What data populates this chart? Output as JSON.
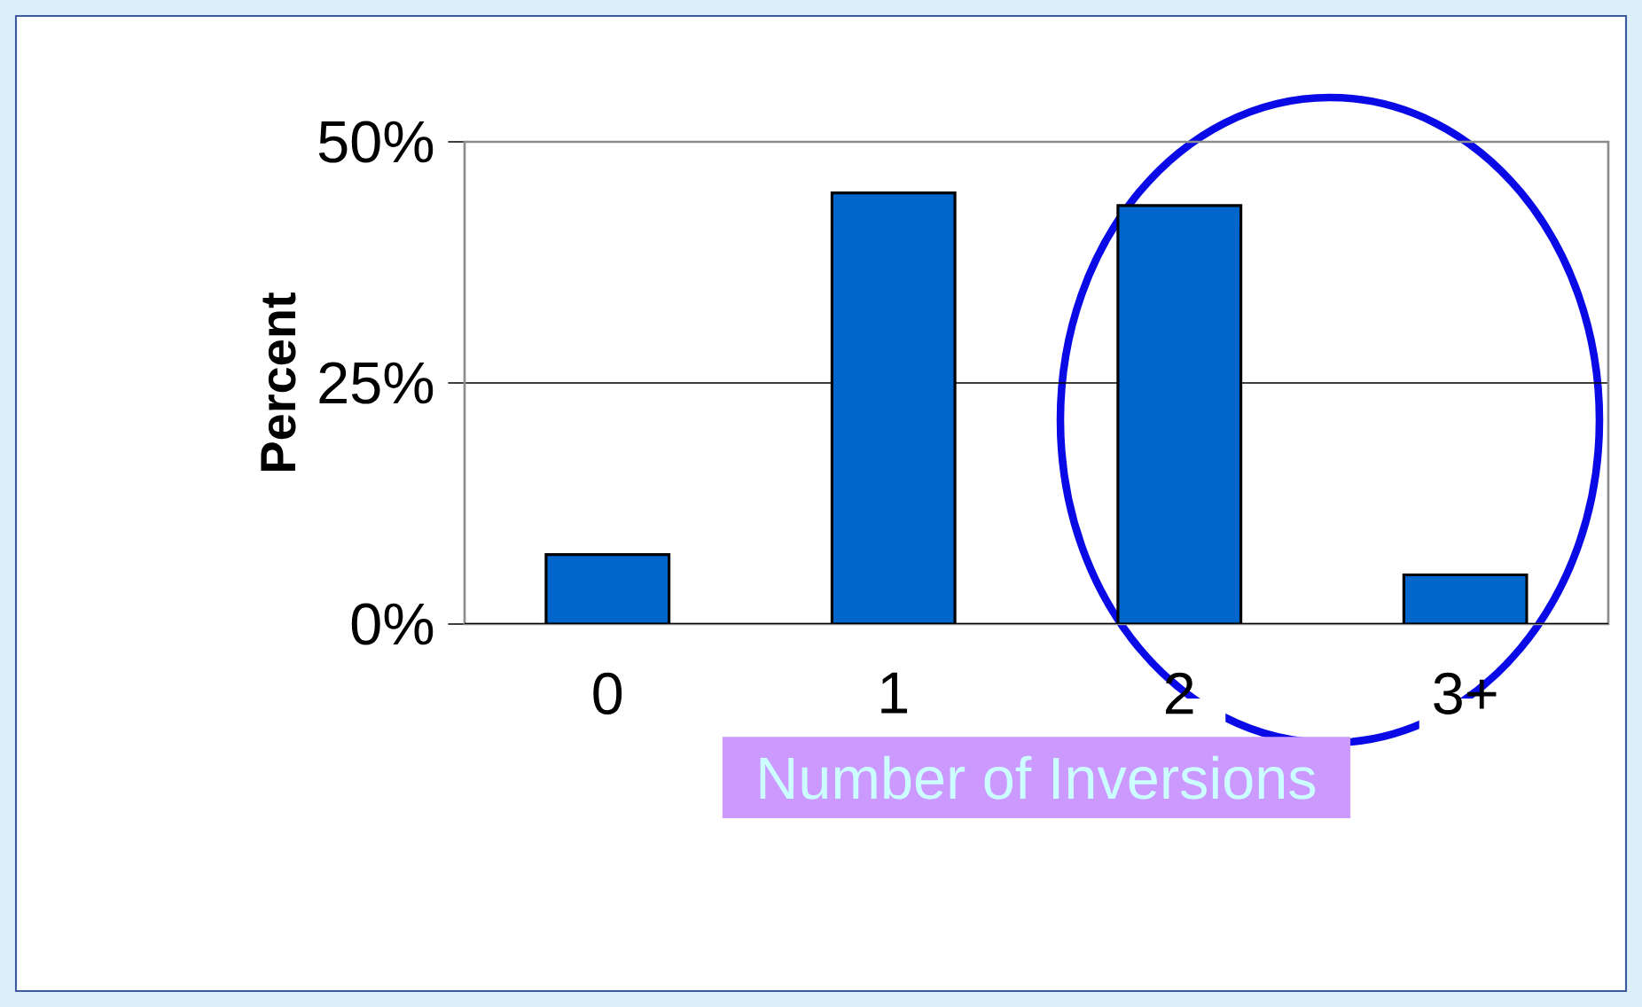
{
  "chart_data": {
    "type": "bar",
    "xlabel": "Number of Inversions",
    "ylabel": "Percent",
    "categories": [
      "0",
      "1",
      "2",
      "3+"
    ],
    "values": [
      7.2,
      44.7,
      43.4,
      5.1
    ],
    "color": "#0066cc",
    "ylim": [
      0,
      50
    ],
    "yticks": [
      {
        "value": 0,
        "label": "0%"
      },
      {
        "value": 25,
        "label": "25%"
      },
      {
        "value": 50,
        "label": "50%"
      }
    ],
    "grid": "y"
  }
}
